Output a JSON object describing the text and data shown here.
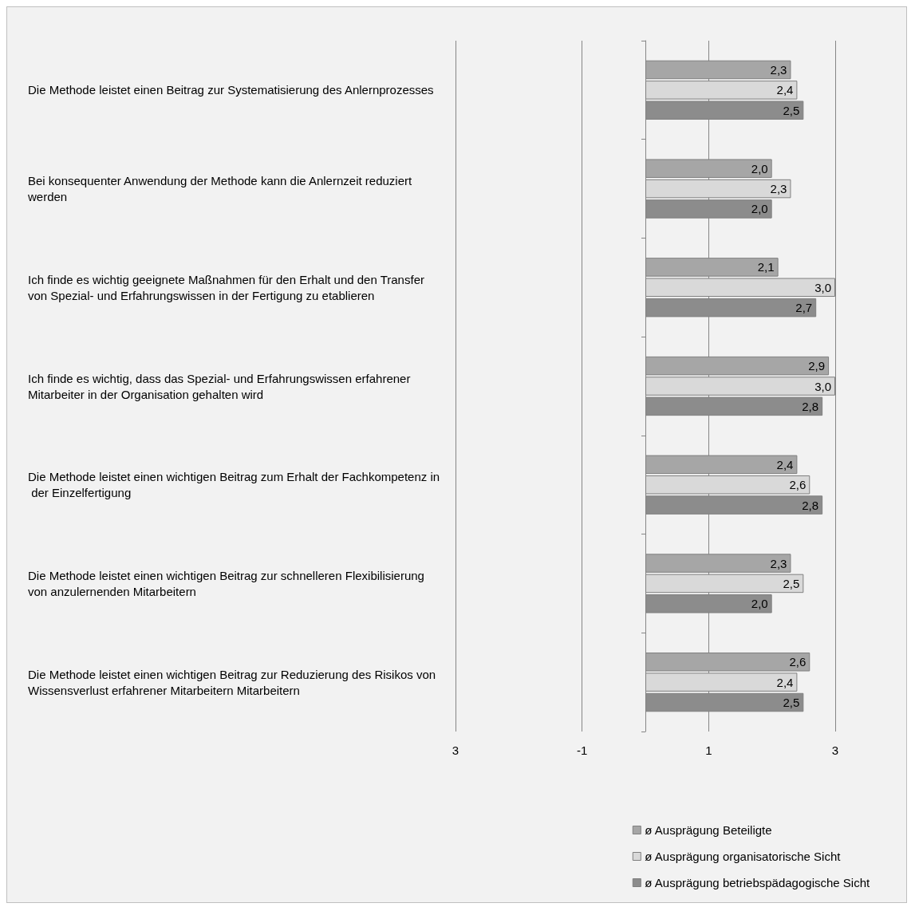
{
  "chart_data": {
    "type": "bar",
    "orientation": "horizontal",
    "categories": [
      "Die Methode leistet einen Beitrag zur Systematisierung des Anlernprozesses",
      "Bei konsequenter Anwendung der Methode kann die Anlernzeit reduziert werden",
      "Ich finde es wichtig geeignete Maßnahmen für den Erhalt und den Transfer von Spezial- und Erfahrungswissen in der Fertigung zu etablieren",
      "Ich finde es wichtig, dass das Spezial- und Erfahrungswissen erfahrener Mitarbeiter in der Organisation gehalten wird",
      "Die Methode leistet einen wichtigen Beitrag zum Erhalt der Fachkompetenz in der Einzelfertigung",
      "Die Methode leistet einen wichtigen Beitrag zur schnelleren Flexibilisierung von anzulernenden Mitarbeitern",
      "Die Methode leistet einen wichtigen Beitrag zur Reduzierung des Risikos von Wissensverlust erfahrener Mitarbeitern Mitarbeitern"
    ],
    "series": [
      {
        "name": "ø Ausprägung Beteiligte",
        "color": "#a6a6a6",
        "values": [
          2.3,
          2.0,
          2.1,
          2.9,
          2.4,
          2.3,
          2.6
        ],
        "value_labels": [
          "2,3",
          "2,0",
          "2,1",
          "2,9",
          "2,4",
          "2,3",
          "2,6"
        ]
      },
      {
        "name": "ø Ausprägung organisatorische Sicht",
        "color": "#d9d9d9",
        "values": [
          2.4,
          2.3,
          3.0,
          3.0,
          2.6,
          2.5,
          2.4
        ],
        "value_labels": [
          "2,4",
          "2,3",
          "3,0",
          "3,0",
          "2,6",
          "2,5",
          "2,4"
        ]
      },
      {
        "name": "ø Ausprägung betriebspädagogische Sicht",
        "color": "#8c8c8c",
        "values": [
          2.5,
          2.0,
          2.7,
          2.8,
          2.8,
          2.0,
          2.5
        ],
        "value_labels": [
          "2,5",
          "2,0",
          "2,7",
          "2,8",
          "2,8",
          "2,0",
          "2,5"
        ]
      }
    ],
    "xlim": [
      -3,
      3
    ],
    "xticks": [
      {
        "value": -3,
        "label": "3"
      },
      -1,
      1,
      3
    ],
    "grid": "x",
    "legend": "bottom right"
  }
}
